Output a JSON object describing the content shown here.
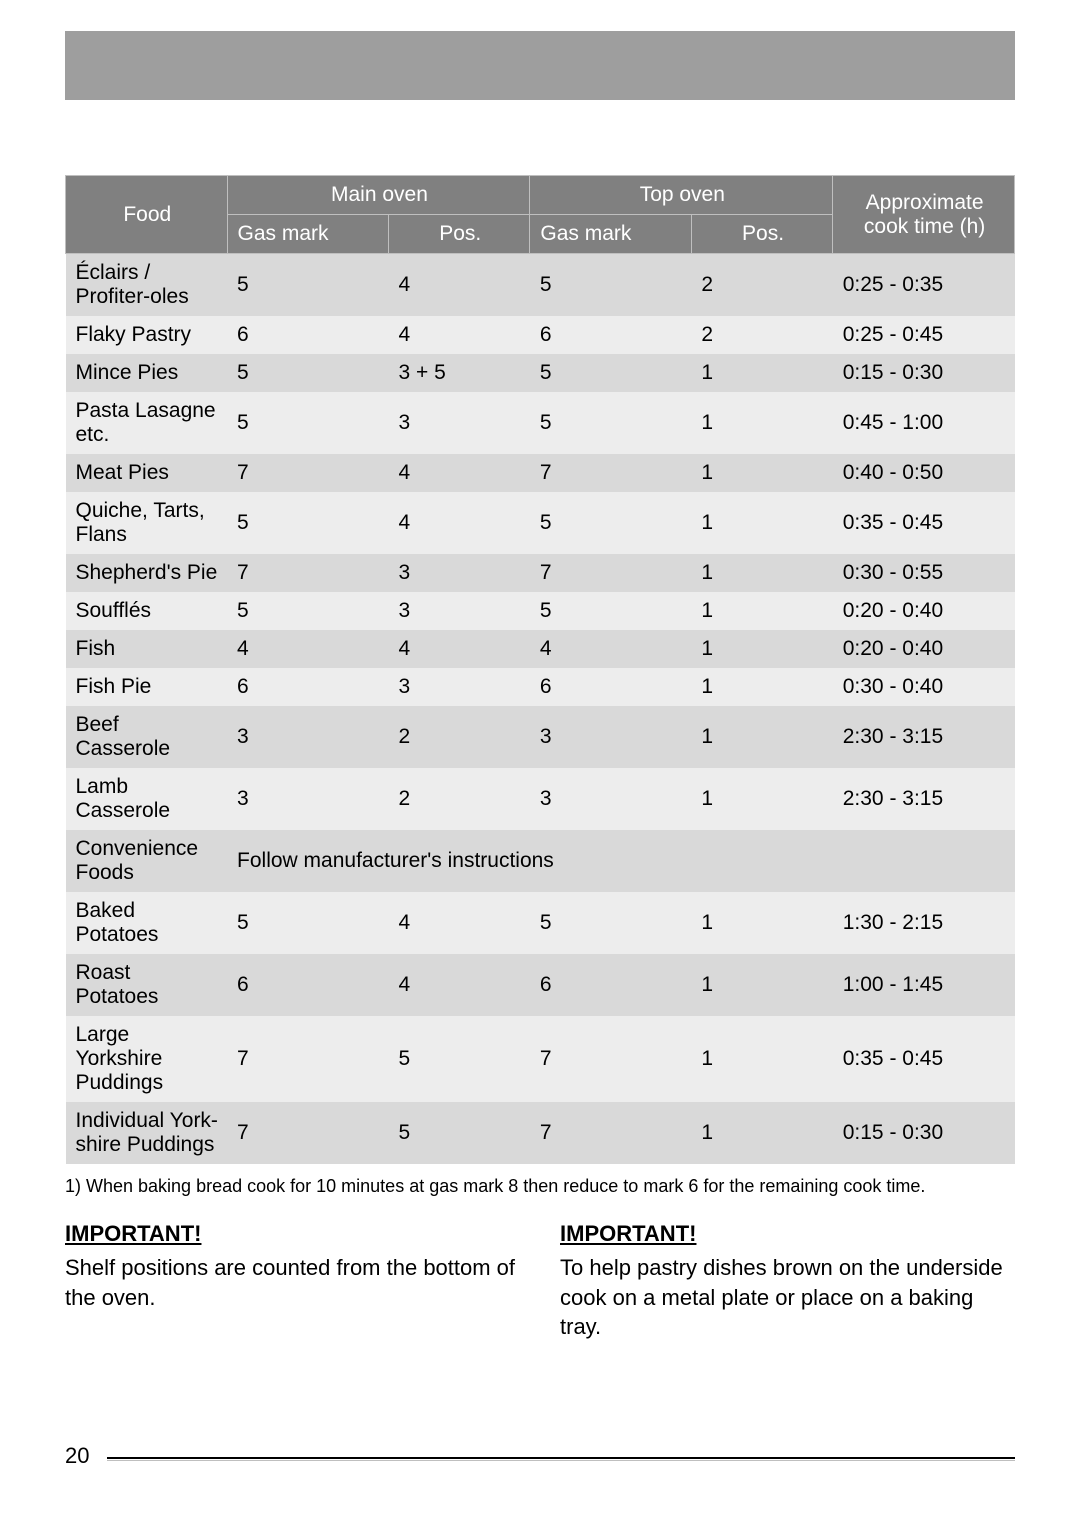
{
  "page_number": "20",
  "colors": {
    "band": "#9e9e9e",
    "header_bg": "#808080",
    "header_text": "#ffffff",
    "row_odd": "#d9d9d9",
    "row_even": "#ededed"
  },
  "table": {
    "header": {
      "food": "Food",
      "main_oven": "Main oven",
      "top_oven": "Top oven",
      "cook_time": "Approximate cook time (h)",
      "gas_mark": "Gas mark",
      "pos": "Pos."
    },
    "rows": [
      {
        "food": "Éclairs / Profiter-oles",
        "m_gas": "5",
        "m_pos": "4",
        "t_gas": "5",
        "t_pos": "2",
        "time": "0:25 - 0:35",
        "span": false
      },
      {
        "food": "Flaky Pastry",
        "m_gas": "6",
        "m_pos": "4",
        "t_gas": "6",
        "t_pos": "2",
        "time": "0:25 - 0:45",
        "span": false
      },
      {
        "food": "Mince Pies",
        "m_gas": "5",
        "m_pos": "3 + 5",
        "t_gas": "5",
        "t_pos": "1",
        "time": "0:15 - 0:30",
        "span": false
      },
      {
        "food": "Pasta Lasagne etc.",
        "m_gas": "5",
        "m_pos": "3",
        "t_gas": "5",
        "t_pos": "1",
        "time": "0:45 - 1:00",
        "span": false
      },
      {
        "food": "Meat Pies",
        "m_gas": "7",
        "m_pos": "4",
        "t_gas": "7",
        "t_pos": "1",
        "time": "0:40 - 0:50",
        "span": false
      },
      {
        "food": "Quiche, Tarts, Flans",
        "m_gas": "5",
        "m_pos": "4",
        "t_gas": "5",
        "t_pos": "1",
        "time": "0:35 - 0:45",
        "span": false
      },
      {
        "food": "Shepherd's Pie",
        "m_gas": "7",
        "m_pos": "3",
        "t_gas": "7",
        "t_pos": "1",
        "time": "0:30 - 0:55",
        "span": false
      },
      {
        "food": "Soufflés",
        "m_gas": "5",
        "m_pos": "3",
        "t_gas": "5",
        "t_pos": "1",
        "time": "0:20 - 0:40",
        "span": false
      },
      {
        "food": "Fish",
        "m_gas": "4",
        "m_pos": "4",
        "t_gas": "4",
        "t_pos": "1",
        "time": "0:20 - 0:40",
        "span": false
      },
      {
        "food": "Fish Pie",
        "m_gas": "6",
        "m_pos": "3",
        "t_gas": "6",
        "t_pos": "1",
        "time": "0:30 - 0:40",
        "span": false
      },
      {
        "food": "Beef Casserole",
        "m_gas": "3",
        "m_pos": "2",
        "t_gas": "3",
        "t_pos": "1",
        "time": "2:30 - 3:15",
        "span": false
      },
      {
        "food": "Lamb Casserole",
        "m_gas": "3",
        "m_pos": "2",
        "t_gas": "3",
        "t_pos": "1",
        "time": "2:30 - 3:15",
        "span": false
      },
      {
        "food": "Convenience Foods",
        "span_text": "Follow manufacturer's instructions",
        "span": true
      },
      {
        "food": "Baked Potatoes",
        "m_gas": "5",
        "m_pos": "4",
        "t_gas": "5",
        "t_pos": "1",
        "time": "1:30 - 2:15",
        "span": false
      },
      {
        "food": "Roast Potatoes",
        "m_gas": "6",
        "m_pos": "4",
        "t_gas": "6",
        "t_pos": "1",
        "time": "1:00 - 1:45",
        "span": false
      },
      {
        "food": "Large Yorkshire Puddings",
        "m_gas": "7",
        "m_pos": "5",
        "t_gas": "7",
        "t_pos": "1",
        "time": "0:35 - 0:45",
        "span": false
      },
      {
        "food": "Individual York-shire Puddings",
        "m_gas": "7",
        "m_pos": "5",
        "t_gas": "7",
        "t_pos": "1",
        "time": "0:15 - 0:30",
        "span": false
      }
    ]
  },
  "footnote": "1) When baking bread cook for 10 minutes at gas mark 8 then reduce to mark 6 for the remaining cook time.",
  "notes": {
    "imp_label": "IMPORTANT!",
    "left": "Shelf positions are counted from the bottom of the oven.",
    "right": "To help pastry dishes brown on the underside cook on a metal plate or place on a baking tray."
  }
}
